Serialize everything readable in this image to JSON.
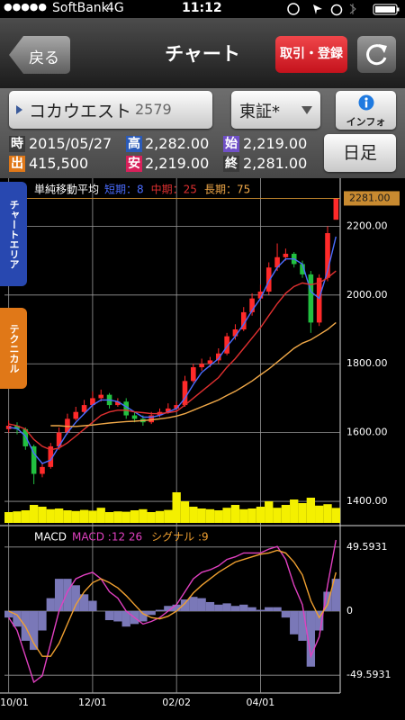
{
  "status_bar": {
    "signal": "●●●●●",
    "carrier": "SoftBank",
    "network": "4G",
    "time": "11:12"
  },
  "nav": {
    "back": "戻る",
    "title": "チャート",
    "trade": "取引・登録"
  },
  "stock": {
    "name": "コカウエスト",
    "code": "2579",
    "market": "東証*",
    "info": "インフォ",
    "period": "日足"
  },
  "quote": [
    {
      "label": "時",
      "value": "2015/05/27"
    },
    {
      "label": "高",
      "value": "2,282.00"
    },
    {
      "label": "始",
      "value": "2,219.00"
    },
    {
      "label": "出",
      "value": "415,500"
    },
    {
      "label": "安",
      "value": "2,219.00"
    },
    {
      "label": "終",
      "value": "2,281.00"
    }
  ],
  "side_tabs": {
    "chart_area": "チャートエリア",
    "technical": "テクニカル"
  },
  "chart_data": {
    "type": "candlestick",
    "title": "単純移動平均",
    "categories": [
      "10/01",
      null,
      null,
      null,
      null,
      null,
      null,
      null,
      null,
      null,
      "12/01",
      null,
      null,
      null,
      null,
      null,
      null,
      null,
      null,
      null,
      "02/02",
      null,
      null,
      null,
      null,
      null,
      null,
      null,
      null,
      null,
      "04/01",
      null,
      null,
      null,
      null,
      null,
      null,
      null,
      null,
      null
    ],
    "open": [
      1610,
      1620,
      1610,
      1560,
      1480,
      1500,
      1560,
      1600,
      1640,
      1660,
      1680,
      1700,
      1710,
      1680,
      1690,
      1650,
      1640,
      1630,
      1650,
      1660,
      1670,
      1680,
      1750,
      1790,
      1800,
      1810,
      1830,
      1880,
      1900,
      1950,
      1990,
      2010,
      2080,
      2110,
      2120,
      2090,
      2060,
      1920,
      2050,
      2219
    ],
    "high": [
      1635,
      1630,
      1615,
      1565,
      1510,
      1570,
      1615,
      1655,
      1675,
      1695,
      1720,
      1725,
      1715,
      1700,
      1700,
      1660,
      1650,
      1660,
      1670,
      1685,
      1690,
      1765,
      1800,
      1815,
      1820,
      1845,
      1890,
      1915,
      1965,
      2005,
      2030,
      2095,
      2150,
      2135,
      2125,
      2100,
      2070,
      2060,
      2200,
      2282
    ],
    "low": [
      1600,
      1595,
      1550,
      1450,
      1470,
      1495,
      1550,
      1595,
      1635,
      1655,
      1675,
      1690,
      1670,
      1675,
      1640,
      1630,
      1620,
      1625,
      1645,
      1655,
      1660,
      1675,
      1745,
      1780,
      1790,
      1800,
      1825,
      1870,
      1895,
      1940,
      1985,
      2000,
      2070,
      2100,
      2080,
      2050,
      1890,
      1910,
      2040,
      2219
    ],
    "close": [
      1620,
      1610,
      1560,
      1480,
      1500,
      1560,
      1600,
      1640,
      1660,
      1680,
      1700,
      1710,
      1680,
      1690,
      1650,
      1640,
      1630,
      1650,
      1660,
      1670,
      1680,
      1750,
      1790,
      1800,
      1810,
      1830,
      1880,
      1900,
      1950,
      1990,
      2010,
      2080,
      2110,
      2120,
      2090,
      2060,
      1920,
      2050,
      2180,
      2281
    ],
    "up_color": "#ff2a2a",
    "down_color": "#22c040",
    "last_price_label": "2281.00",
    "series": [
      {
        "name": "短期：8",
        "color": "#4a6cff",
        "values": [
          1615,
          1612,
          1590,
          1540,
          1510,
          1520,
          1560,
          1600,
          1630,
          1655,
          1680,
          1695,
          1695,
          1690,
          1675,
          1660,
          1645,
          1645,
          1650,
          1660,
          1670,
          1700,
          1740,
          1775,
          1795,
          1815,
          1850,
          1880,
          1915,
          1955,
          1990,
          2040,
          2080,
          2105,
          2105,
          2090,
          2010,
          1990,
          2070,
          2170
        ]
      },
      {
        "name": "中期：25",
        "color": "#e03030",
        "values": [
          1625,
          1620,
          1610,
          1580,
          1560,
          1550,
          1555,
          1570,
          1590,
          1610,
          1630,
          1650,
          1660,
          1665,
          1665,
          1660,
          1658,
          1655,
          1655,
          1658,
          1662,
          1680,
          1700,
          1720,
          1740,
          1760,
          1790,
          1815,
          1845,
          1875,
          1905,
          1940,
          1975,
          2005,
          2025,
          2035,
          2030,
          2035,
          2050,
          2070
        ]
      },
      {
        "name": "長期：75",
        "color": "#f0a848",
        "values": [
          null,
          null,
          null,
          null,
          null,
          1620,
          1620,
          1618,
          1618,
          1620,
          1622,
          1625,
          1628,
          1630,
          1632,
          1633,
          1635,
          1637,
          1640,
          1643,
          1648,
          1655,
          1665,
          1675,
          1685,
          1695,
          1708,
          1720,
          1735,
          1750,
          1768,
          1785,
          1805,
          1825,
          1845,
          1860,
          1870,
          1885,
          1900,
          1920
        ]
      }
    ],
    "ylim": [
      1340,
      2290
    ],
    "yticks": [
      {
        "value": 1400,
        "label": "1400.00"
      },
      {
        "value": 1600,
        "label": "1600.00"
      },
      {
        "value": 1800,
        "label": "1800.00"
      },
      {
        "value": 2000,
        "label": "2000.00"
      },
      {
        "value": 2200,
        "label": "2200.00"
      }
    ],
    "grid": true,
    "volume": {
      "color": "#f4f000",
      "ylim": [
        0,
        1000000
      ],
      "values": [
        300000,
        320000,
        350000,
        500000,
        450000,
        380000,
        400000,
        350000,
        330000,
        360000,
        340000,
        420000,
        300000,
        320000,
        310000,
        350000,
        380000,
        300000,
        330000,
        360000,
        850000,
        600000,
        450000,
        400000,
        380000,
        350000,
        420000,
        500000,
        380000,
        400000,
        450000,
        600000,
        420000,
        500000,
        650000,
        550000,
        700000,
        480000,
        520000,
        415500
      ]
    },
    "macd": {
      "title": "MACD",
      "series": [
        {
          "name": "MACD :12 26",
          "color": "#e040c0",
          "values": [
            -5,
            -15,
            -35,
            -55,
            -50,
            -25,
            0,
            15,
            25,
            28,
            30,
            25,
            15,
            10,
            0,
            -5,
            -10,
            -8,
            -5,
            0,
            5,
            15,
            25,
            30,
            32,
            35,
            40,
            42,
            45,
            45,
            45,
            48,
            50,
            40,
            20,
            5,
            -35,
            -20,
            20,
            55
          ]
        },
        {
          "name": "シグナル :9",
          "color": "#f0a030",
          "values": [
            0,
            -3,
            -12,
            -25,
            -35,
            -35,
            -25,
            -10,
            5,
            15,
            22,
            25,
            22,
            18,
            12,
            5,
            -2,
            -5,
            -6,
            -4,
            0,
            6,
            14,
            20,
            25,
            30,
            34,
            38,
            40,
            42,
            44,
            45,
            47,
            45,
            38,
            28,
            8,
            -5,
            5,
            30
          ]
        }
      ],
      "histogram": {
        "color": "#7a78b8",
        "values": [
          -5,
          -12,
          -23,
          -30,
          -15,
          10,
          25,
          25,
          20,
          13,
          8,
          0,
          -7,
          -8,
          -12,
          -10,
          -8,
          -3,
          1,
          4,
          5,
          9,
          11,
          10,
          7,
          5,
          6,
          4,
          5,
          3,
          1,
          3,
          3,
          -5,
          -18,
          -23,
          -43,
          -15,
          15,
          25
        ]
      },
      "ylim": [
        -62,
        62
      ],
      "yticks": [
        -49.5931,
        0,
        49.5931
      ]
    }
  }
}
